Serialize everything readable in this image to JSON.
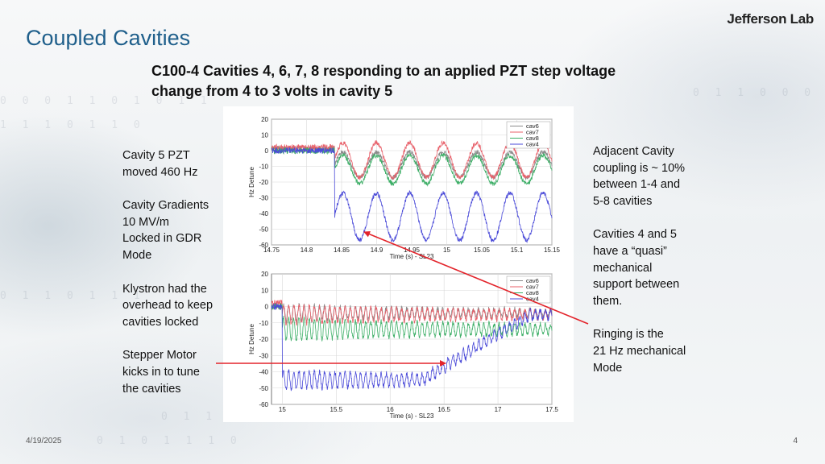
{
  "slide": {
    "title": "Coupled Cavities",
    "logo": "Jefferson Lab",
    "subtitle": "C100-4 Cavities 4, 6, 7, 8 responding to an applied PZT  step voltage change from 4 to 3 volts in cavity 5",
    "date": "4/19/2025",
    "page_number": "4"
  },
  "left_notes": [
    "Cavity 5 PZT\nmoved 460 Hz",
    "Cavity Gradients\n10 MV/m\nLocked in GDR\nMode",
    "Klystron had the\noverhead to keep\ncavities locked",
    "Stepper Motor\nkicks in to tune\nthe cavities"
  ],
  "right_notes": [
    "Adjacent Cavity\ncoupling is ~ 10%\nbetween 1-4 and\n5-8 cavities",
    "Cavities 4 and 5\nhave a “quasi”\nmechanical\nsupport between\nthem.",
    "Ringing is the\n21 Hz mechanical\nMode"
  ],
  "colors": {
    "title": "#1f5f8b",
    "arrow": "#e3242b",
    "cav6": "#8a8a8a",
    "cav7": "#e8606a",
    "cav8": "#3cae66",
    "cav4": "#4a4ad8"
  },
  "chart_data": [
    {
      "type": "line",
      "xlabel": "Time (s) - SL23",
      "ylabel": "Hz Detune",
      "xlim": [
        14.75,
        15.15
      ],
      "ylim": [
        -60,
        20
      ],
      "xticks": [
        "14.75",
        "14.8",
        "14.85",
        "14.9",
        "14.95",
        "15",
        "15.05",
        "15.1",
        "15.15"
      ],
      "yticks": [
        "20",
        "10",
        "0",
        "-10",
        "-20",
        "-30",
        "-40",
        "-50",
        "-60"
      ],
      "legend": [
        "cav6",
        "cav7",
        "cav8",
        "cav4"
      ],
      "legend_position": "top-right",
      "grid": true,
      "step_time": 14.84,
      "series": [
        {
          "name": "cav6",
          "baseline": 1,
          "amplitude": 8,
          "freq_hz": 21,
          "offset": -9
        },
        {
          "name": "cav7",
          "baseline": 2,
          "amplitude": 11,
          "freq_hz": 21,
          "offset": -6
        },
        {
          "name": "cav8",
          "baseline": 0,
          "amplitude": 9,
          "freq_hz": 21,
          "offset": -12
        },
        {
          "name": "cav4",
          "baseline": 0,
          "amplitude": 15,
          "freq_hz": 21,
          "offset": -42
        }
      ]
    },
    {
      "type": "line",
      "xlabel": "Time (s) - SL23",
      "ylabel": "Hz Detune",
      "xlim": [
        14.9,
        17.5
      ],
      "ylim": [
        -60,
        20
      ],
      "xticks": [
        "15",
        "15.5",
        "16",
        "16.5",
        "17",
        "17.5"
      ],
      "yticks": [
        "20",
        "10",
        "0",
        "-10",
        "-20",
        "-30",
        "-40",
        "-50",
        "-60"
      ],
      "legend": [
        "cav6",
        "cav7",
        "cav8",
        "cav4"
      ],
      "legend_position": "top-right",
      "grid": true,
      "step_time": 15.0,
      "series": [
        {
          "name": "cav6",
          "baseline": 0,
          "amplitude": 5,
          "freq_hz": 21,
          "offset": -4
        },
        {
          "name": "cav7",
          "baseline": 2,
          "amplitude": 6,
          "freq_hz": 21,
          "offset": -5
        },
        {
          "name": "cav8",
          "baseline": 0,
          "amplitude": 7,
          "freq_hz": 21,
          "offset": -14
        },
        {
          "name": "cav4",
          "baseline": 0,
          "amplitude": 6,
          "freq_hz": 21,
          "offset": -45
        }
      ]
    }
  ]
}
